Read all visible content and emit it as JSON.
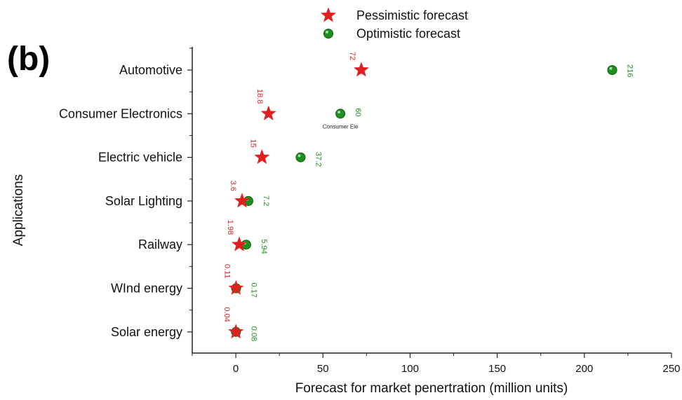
{
  "chart_data": {
    "type": "scatter",
    "panel_label": "(b)",
    "title": "",
    "xlabel": "Forecast for market penertration (million units)",
    "ylabel": "Applications",
    "xlim": [
      -25,
      250
    ],
    "xticks": [
      0,
      50,
      100,
      150,
      200,
      250
    ],
    "categories": [
      "Automotive",
      "Consumer Electronics",
      "Electric vehicle",
      "Solar Lighting",
      "Railway",
      "WInd energy",
      "Solar energy"
    ],
    "legend_position": "top-center",
    "grid": false,
    "series": [
      {
        "name": "Pessimistic forecast",
        "marker": "star",
        "color": "#e02020",
        "values": [
          72,
          18.8,
          15,
          3.6,
          1.98,
          0.11,
          0.04
        ],
        "labels": [
          "72",
          "18.8",
          "15",
          "3.6",
          "1.98",
          "0.11",
          "0.04"
        ]
      },
      {
        "name": "Optimistic forecast",
        "marker": "circle",
        "color": "#1f8f1f",
        "values": [
          216,
          60,
          37.2,
          7.2,
          5.94,
          0.17,
          0.08
        ],
        "labels": [
          "216",
          "60",
          "37.2",
          "7.2",
          "5.94",
          "0.17",
          "0.08"
        ]
      }
    ],
    "annotations": [
      {
        "text": "Consumer Ele",
        "category": "Consumer Electronics",
        "x": 60
      }
    ]
  }
}
